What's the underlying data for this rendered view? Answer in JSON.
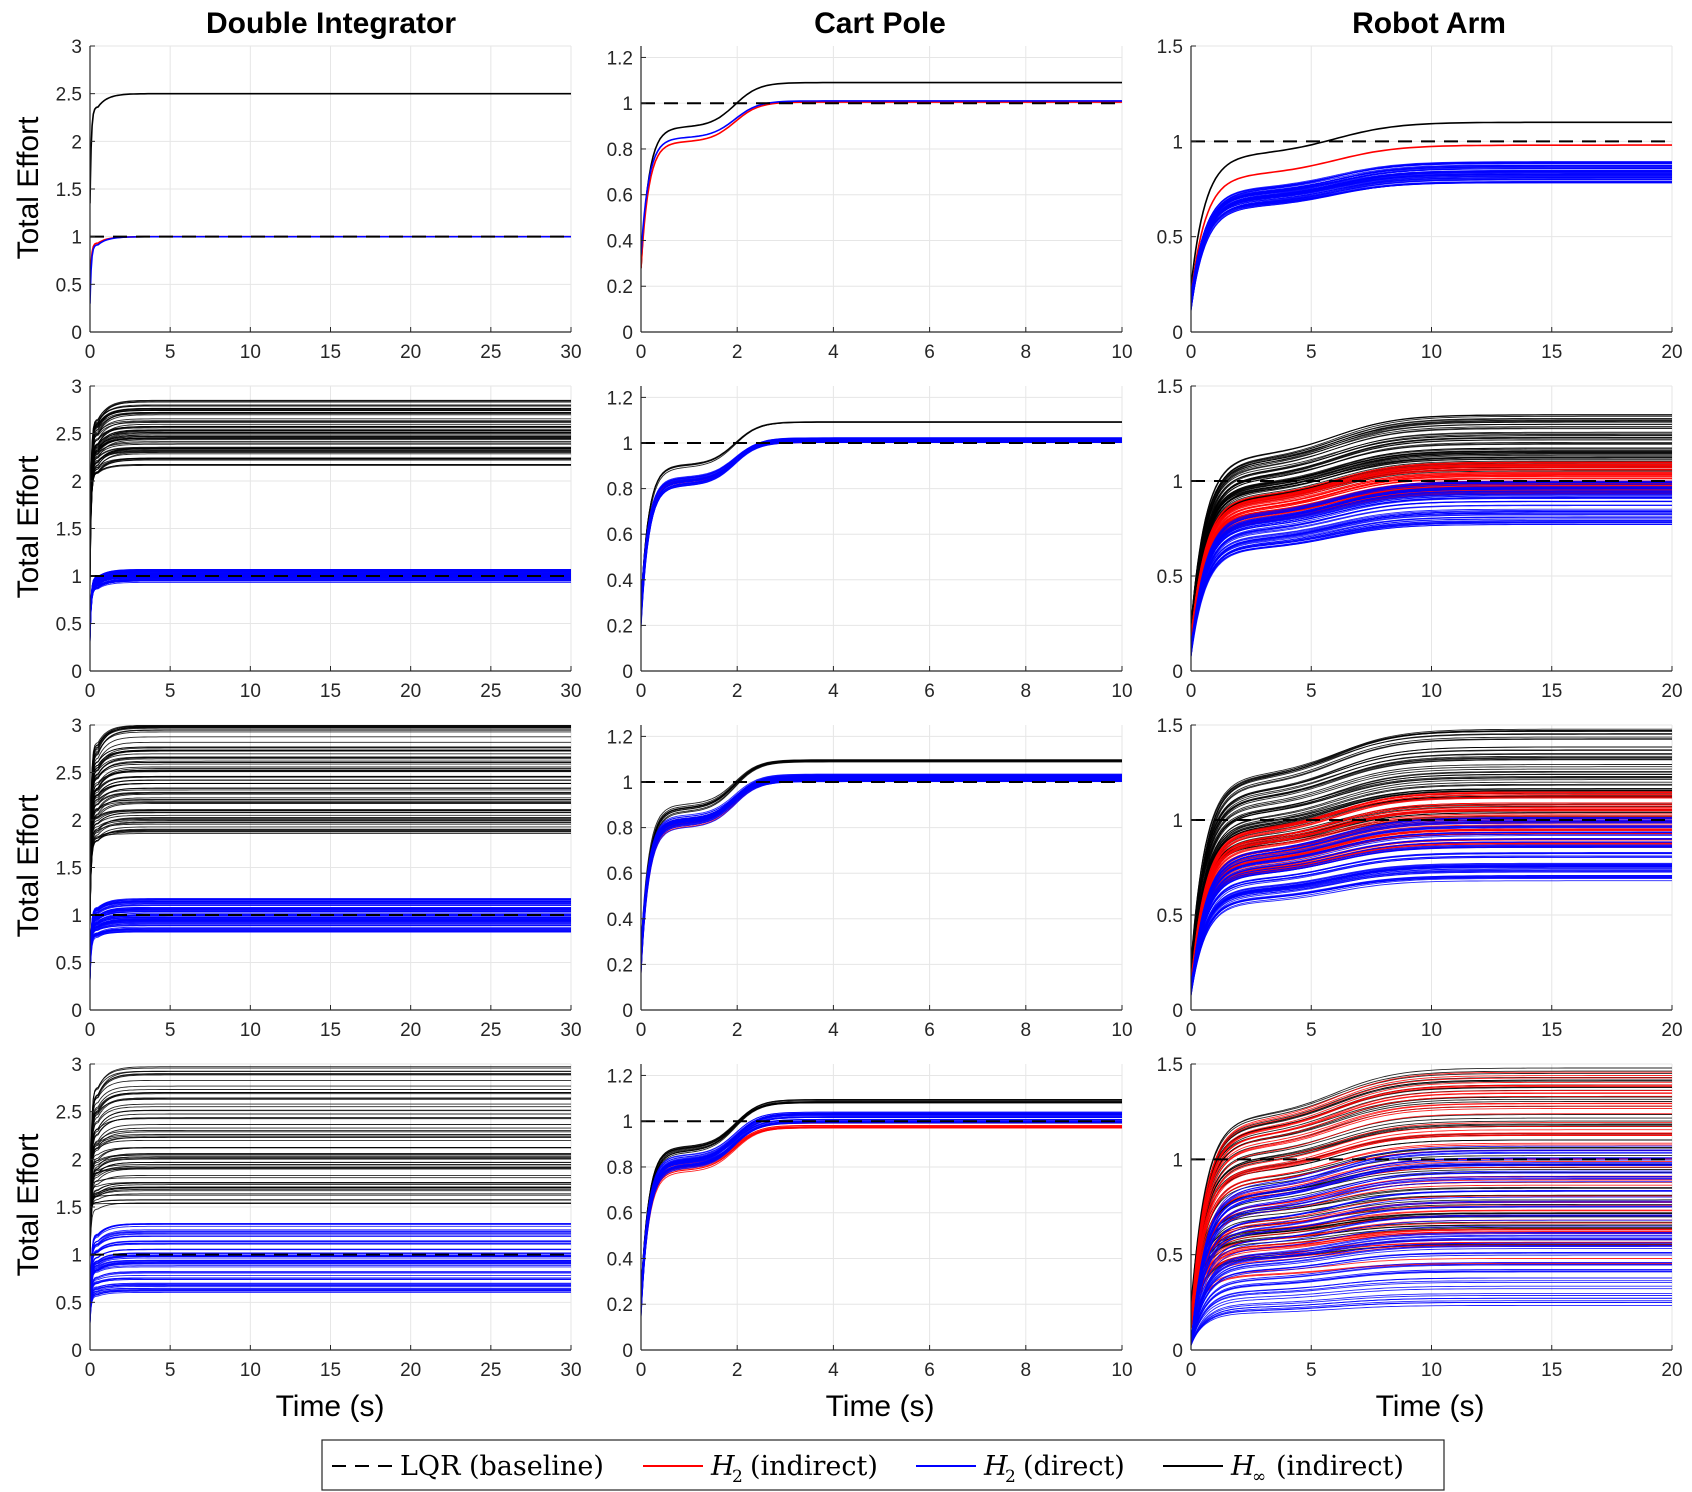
{
  "colors": {
    "lqr": "#000000",
    "h2_indirect": "#ff0000",
    "h2_direct": "#0000ff",
    "hinf_indirect": "#000000",
    "grid": "#e6e6e6",
    "axis": "#262626"
  },
  "columns": [
    {
      "title": "Double Integrator",
      "xlim": [
        0,
        30
      ],
      "xticks": [
        0,
        5,
        10,
        15,
        20,
        25,
        30
      ],
      "ylim": [
        0,
        3
      ],
      "yticks": [
        0,
        0.5,
        1,
        1.5,
        2,
        2.5,
        3
      ]
    },
    {
      "title": "Cart Pole",
      "xlim": [
        0,
        10
      ],
      "xticks": [
        0,
        2,
        4,
        6,
        8,
        10
      ],
      "ylim": [
        0,
        1.25
      ],
      "yticks": [
        0,
        0.2,
        0.4,
        0.6,
        0.8,
        1,
        1.2
      ]
    },
    {
      "title": "Robot Arm",
      "xlim": [
        0,
        20
      ],
      "xticks": [
        0,
        5,
        10,
        15,
        20
      ],
      "ylim": [
        0,
        1.5
      ],
      "yticks": [
        0,
        0.5,
        1,
        1.5
      ]
    }
  ],
  "row_ylabel": "Total Effort",
  "xlabel": "Time (s)",
  "legend": [
    {
      "label": "LQR (baseline)",
      "style": "dashed",
      "color": "#000000"
    },
    {
      "symbol": "H",
      "sub": "2",
      "label": "(indirect)",
      "style": "solid",
      "color": "#ff0000"
    },
    {
      "symbol": "H",
      "sub": "2",
      "label": "(direct)",
      "style": "solid",
      "color": "#0000ff"
    },
    {
      "symbol": "H",
      "sub": "∞",
      "label": "(indirect)",
      "style": "solid",
      "color": "#000000"
    }
  ],
  "chart_data": [
    {
      "type": "line",
      "row": 1,
      "col": 1,
      "xlim": [
        0,
        30
      ],
      "ylim": [
        0,
        3
      ],
      "xlabel": "",
      "ylabel": "Total Effort",
      "title": "Double Integrator",
      "series": [
        {
          "name": "LQR (baseline)",
          "style": "dashed",
          "steady_state": 1.0
        },
        {
          "name": "H2 (indirect)",
          "count": 1,
          "steady_state": [
            1.0,
            1.0
          ],
          "initial": 0.4
        },
        {
          "name": "H2 (direct)",
          "count": 1,
          "steady_state": [
            1.0,
            1.0
          ],
          "initial": 0.4
        },
        {
          "name": "H∞ (indirect)",
          "count": 1,
          "steady_state": [
            2.5,
            2.5
          ],
          "initial": 1.2
        }
      ]
    },
    {
      "type": "line",
      "row": 1,
      "col": 2,
      "xlim": [
        0,
        10
      ],
      "ylim": [
        0,
        1.25
      ],
      "xlabel": "",
      "ylabel": "",
      "title": "Cart Pole",
      "series": [
        {
          "name": "LQR (baseline)",
          "style": "dashed",
          "steady_state": 1.0
        },
        {
          "name": "H2 (indirect)",
          "count": 1,
          "steady_state": [
            1.005,
            1.005
          ],
          "initial": 0.27
        },
        {
          "name": "H2 (direct)",
          "count": 1,
          "steady_state": [
            1.01,
            1.01
          ],
          "initial": 0.27
        },
        {
          "name": "H∞ (indirect)",
          "count": 1,
          "steady_state": [
            1.09,
            1.09
          ],
          "initial": 0.27
        }
      ]
    },
    {
      "type": "line",
      "row": 1,
      "col": 3,
      "xlim": [
        0,
        20
      ],
      "ylim": [
        0,
        1.5
      ],
      "xlabel": "",
      "ylabel": "",
      "title": "Robot Arm",
      "series": [
        {
          "name": "LQR (baseline)",
          "style": "dashed",
          "steady_state": 1.0
        },
        {
          "name": "H2 (indirect)",
          "count": 1,
          "steady_state": [
            0.98,
            0.98
          ],
          "initial": 0.2
        },
        {
          "name": "H2 (direct)",
          "count": 60,
          "steady_state": [
            0.78,
            0.9
          ],
          "initial": 0.15
        },
        {
          "name": "H∞ (indirect)",
          "count": 1,
          "steady_state": [
            1.1,
            1.1
          ],
          "initial": 0.25
        }
      ]
    },
    {
      "type": "line",
      "row": 2,
      "col": 1,
      "xlim": [
        0,
        30
      ],
      "ylim": [
        0,
        3
      ],
      "xlabel": "",
      "ylabel": "Total Effort",
      "title": "",
      "series": [
        {
          "name": "LQR (baseline)",
          "style": "dashed",
          "steady_state": 1.0
        },
        {
          "name": "H2 (direct)",
          "count": 70,
          "steady_state": [
            0.93,
            1.07
          ],
          "initial": 0.4
        },
        {
          "name": "H∞ (indirect)",
          "count": 70,
          "steady_state": [
            2.15,
            2.85
          ],
          "initial": 1.2
        }
      ]
    },
    {
      "type": "line",
      "row": 2,
      "col": 2,
      "xlim": [
        0,
        10
      ],
      "ylim": [
        0,
        1.25
      ],
      "xlabel": "",
      "ylabel": "",
      "title": "",
      "series": [
        {
          "name": "LQR (baseline)",
          "style": "dashed",
          "steady_state": 1.0
        },
        {
          "name": "H2 (indirect)",
          "count": 5,
          "steady_state": [
            1.0,
            1.02
          ],
          "initial": 0.25
        },
        {
          "name": "H2 (direct)",
          "count": 30,
          "steady_state": [
            1.0,
            1.025
          ],
          "initial": 0.25
        },
        {
          "name": "H∞ (indirect)",
          "count": 5,
          "steady_state": [
            1.09,
            1.095
          ],
          "initial": 0.25
        }
      ]
    },
    {
      "type": "line",
      "row": 2,
      "col": 3,
      "xlim": [
        0,
        20
      ],
      "ylim": [
        0,
        1.5
      ],
      "xlabel": "",
      "ylabel": "",
      "title": "",
      "series": [
        {
          "name": "LQR (baseline)",
          "style": "dashed",
          "steady_state": 1.0
        },
        {
          "name": "H2 (indirect)",
          "count": 60,
          "steady_state": [
            0.93,
            1.1
          ],
          "initial": 0.15
        },
        {
          "name": "H2 (direct)",
          "count": 60,
          "steady_state": [
            0.77,
            1.0
          ],
          "initial": 0.1
        },
        {
          "name": "H∞ (indirect)",
          "count": 60,
          "steady_state": [
            1.05,
            1.35
          ],
          "initial": 0.2
        }
      ]
    },
    {
      "type": "line",
      "row": 3,
      "col": 1,
      "xlim": [
        0,
        30
      ],
      "ylim": [
        0,
        3
      ],
      "xlabel": "",
      "ylabel": "Total Effort",
      "title": "",
      "series": [
        {
          "name": "LQR (baseline)",
          "style": "dashed",
          "steady_state": 1.0
        },
        {
          "name": "H2 (direct)",
          "count": 80,
          "steady_state": [
            0.82,
            1.18
          ],
          "initial": 0.4
        },
        {
          "name": "H∞ (indirect)",
          "count": 80,
          "steady_state": [
            1.8,
            3.0
          ],
          "initial": 1.2
        }
      ]
    },
    {
      "type": "line",
      "row": 3,
      "col": 2,
      "xlim": [
        0,
        10
      ],
      "ylim": [
        0,
        1.25
      ],
      "xlabel": "",
      "ylabel": "",
      "title": "",
      "series": [
        {
          "name": "LQR (baseline)",
          "style": "dashed",
          "steady_state": 1.0
        },
        {
          "name": "H2 (indirect)",
          "count": 10,
          "steady_state": [
            1.0,
            1.02
          ],
          "initial": 0.22
        },
        {
          "name": "H2 (direct)",
          "count": 40,
          "steady_state": [
            1.0,
            1.035
          ],
          "initial": 0.22
        },
        {
          "name": "H∞ (indirect)",
          "count": 10,
          "steady_state": [
            1.085,
            1.1
          ],
          "initial": 0.22
        }
      ]
    },
    {
      "type": "line",
      "row": 3,
      "col": 3,
      "xlim": [
        0,
        20
      ],
      "ylim": [
        0,
        1.5
      ],
      "xlabel": "",
      "ylabel": "",
      "title": "",
      "series": [
        {
          "name": "LQR (baseline)",
          "style": "dashed",
          "steady_state": 1.0
        },
        {
          "name": "H2 (indirect)",
          "count": 60,
          "steady_state": [
            0.85,
            1.15
          ],
          "initial": 0.12
        },
        {
          "name": "H2 (direct)",
          "count": 70,
          "steady_state": [
            0.68,
            1.02
          ],
          "initial": 0.1
        },
        {
          "name": "H∞ (indirect)",
          "count": 60,
          "steady_state": [
            1.0,
            1.48
          ],
          "initial": 0.2
        }
      ]
    },
    {
      "type": "line",
      "row": 4,
      "col": 1,
      "xlim": [
        0,
        30
      ],
      "ylim": [
        0,
        3
      ],
      "xlabel": "Time (s)",
      "ylabel": "Total Effort",
      "title": "",
      "series": [
        {
          "name": "LQR (baseline)",
          "style": "dashed",
          "steady_state": 1.0
        },
        {
          "name": "H2 (direct)",
          "count": 70,
          "steady_state": [
            0.6,
            1.35
          ],
          "initial": 0.35
        },
        {
          "name": "H∞ (indirect)",
          "count": 70,
          "steady_state": [
            1.5,
            3.0
          ],
          "initial": 1.2
        }
      ]
    },
    {
      "type": "line",
      "row": 4,
      "col": 2,
      "xlim": [
        0,
        10
      ],
      "ylim": [
        0,
        1.25
      ],
      "xlabel": "Time (s)",
      "ylabel": "",
      "title": "",
      "series": [
        {
          "name": "LQR (baseline)",
          "style": "dashed",
          "steady_state": 1.0
        },
        {
          "name": "H2 (indirect)",
          "count": 12,
          "steady_state": [
            0.97,
            1.01
          ],
          "initial": 0.2
        },
        {
          "name": "H2 (direct)",
          "count": 40,
          "steady_state": [
            0.99,
            1.04
          ],
          "initial": 0.2
        },
        {
          "name": "H∞ (indirect)",
          "count": 12,
          "steady_state": [
            1.08,
            1.1
          ],
          "initial": 0.2
        }
      ]
    },
    {
      "type": "line",
      "row": 4,
      "col": 3,
      "xlim": [
        0,
        20
      ],
      "ylim": [
        0,
        1.5
      ],
      "xlabel": "Time (s)",
      "ylabel": "",
      "title": "",
      "series": [
        {
          "name": "LQR (baseline)",
          "style": "dashed",
          "steady_state": 1.0
        },
        {
          "name": "H2 (indirect)",
          "count": 60,
          "steady_state": [
            0.45,
            1.48
          ],
          "initial": 0.15
        },
        {
          "name": "H2 (direct)",
          "count": 70,
          "steady_state": [
            0.2,
            1.1
          ],
          "initial": 0.03
        },
        {
          "name": "H∞ (indirect)",
          "count": 60,
          "steady_state": [
            0.55,
            1.5
          ],
          "initial": 0.2
        }
      ]
    }
  ]
}
